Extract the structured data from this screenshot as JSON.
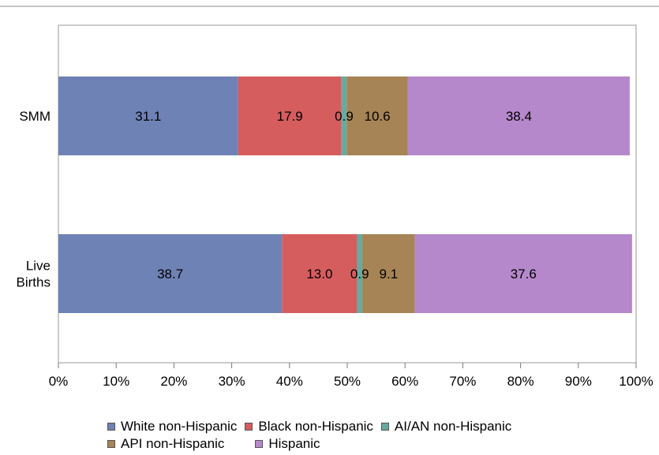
{
  "chart_data": {
    "type": "bar",
    "orientation": "horizontal",
    "stacked": true,
    "categories": [
      "SMM",
      "Live Births"
    ],
    "category_labels": [
      [
        "SMM"
      ],
      [
        "Live",
        "Births"
      ]
    ],
    "series": [
      {
        "name": "White non-Hispanic",
        "color": "#6f82b5",
        "values": [
          31.1,
          38.7
        ],
        "labels": [
          "31.1",
          "38.7"
        ]
      },
      {
        "name": "Black non-Hispanic",
        "color": "#d65d5e",
        "values": [
          17.9,
          13.0
        ],
        "labels": [
          "17.9",
          "13.0"
        ]
      },
      {
        "name": "AI/AN non-Hispanic",
        "color": "#67aa9f",
        "values": [
          0.9,
          0.9
        ],
        "labels": [
          "0.9",
          "0.9"
        ]
      },
      {
        "name": "API non-Hispanic",
        "color": "#a78455",
        "values": [
          10.6,
          9.1
        ],
        "labels": [
          "10.6",
          "9.1"
        ]
      },
      {
        "name": "Hispanic",
        "color": "#b588cb",
        "values": [
          38.4,
          37.6
        ],
        "labels": [
          "38.4",
          "37.6"
        ]
      }
    ],
    "xlim": [
      0,
      100
    ],
    "xticks": [
      "0%",
      "10%",
      "20%",
      "30%",
      "40%",
      "50%",
      "60%",
      "70%",
      "80%",
      "90%",
      "100%"
    ],
    "grid": false,
    "legend_position": "bottom"
  }
}
